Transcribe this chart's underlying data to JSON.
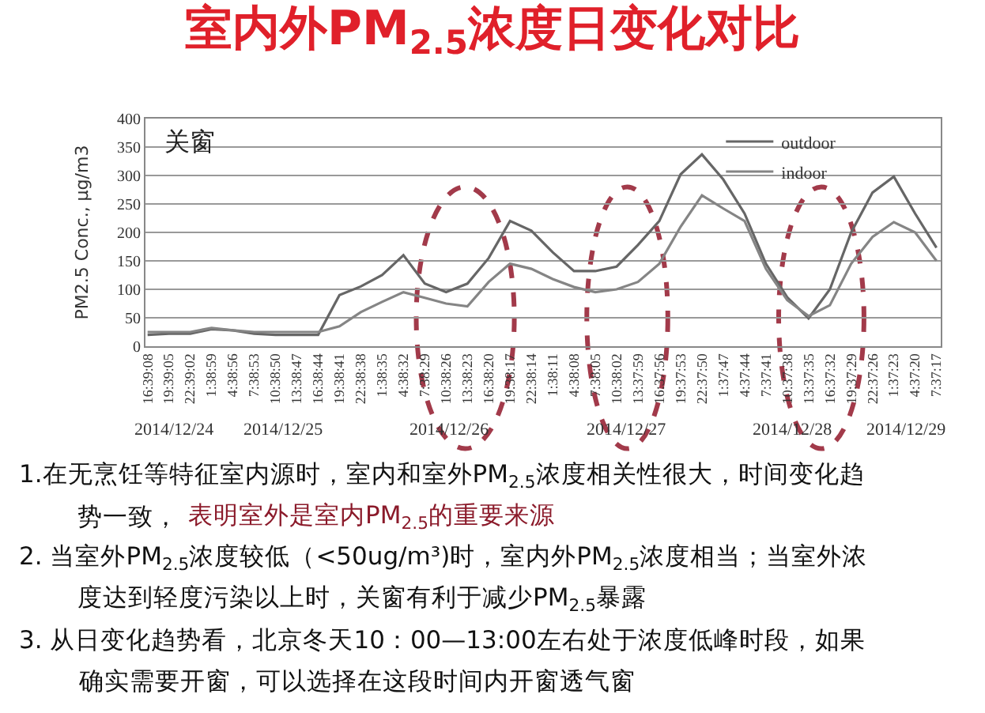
{
  "chart_data": {
    "type": "line",
    "title": "室内外PM$_{2.5}$浓度日变化对比",
    "ylabel": "PM2.5 Conc., μg/m3",
    "categories": [
      "16:39:08",
      "19:39:05",
      "22:39:02",
      "1:38:59",
      "4:38:56",
      "7:38:53",
      "10:38:50",
      "13:38:47",
      "16:38:44",
      "19:38:41",
      "22:38:38",
      "1:38:35",
      "4:38:32",
      "7:38:29",
      "10:38:26",
      "13:38:23",
      "16:38:20",
      "19:38:17",
      "22:38:14",
      "1:38:11",
      "4:38:08",
      "7:38:05",
      "10:38:02",
      "13:37:59",
      "16:37:56",
      "19:37:53",
      "22:37:50",
      "1:37:47",
      "4:37:44",
      "7:37:41",
      "10:37:38",
      "13:37:35",
      "16:37:32",
      "19:37:29",
      "22:37:26",
      "1:37:23",
      "4:37:20",
      "7:37:17"
    ],
    "series": [
      {
        "name": "outdoor",
        "color": "#666666",
        "values": [
          20,
          22,
          22,
          30,
          28,
          22,
          20,
          20,
          20,
          90,
          105,
          125,
          160,
          110,
          95,
          110,
          155,
          220,
          203,
          165,
          132,
          132,
          140,
          178,
          220,
          302,
          337,
          293,
          233,
          145,
          86,
          49,
          100,
          200,
          270,
          298,
          233,
          173
        ]
      },
      {
        "name": "indoor",
        "color": "#858585",
        "values": [
          25,
          25,
          25,
          32,
          28,
          25,
          25,
          25,
          25,
          35,
          60,
          78,
          95,
          85,
          75,
          70,
          113,
          145,
          136,
          118,
          104,
          95,
          100,
          113,
          145,
          210,
          265,
          242,
          220,
          136,
          81,
          53,
          72,
          145,
          192,
          218,
          200,
          150
        ]
      }
    ],
    "ylim": [
      0,
      400
    ],
    "yticks": [
      0,
      50,
      100,
      150,
      200,
      250,
      300,
      350,
      400
    ],
    "grid": "y",
    "legend": "top right",
    "marker": "none",
    "line_style": "solid",
    "annotations": [
      "关窗",
      "2014/12/24",
      "2014/12/25",
      "2014/12/26",
      "2014/12/27",
      "2014/12/28",
      "2014/12/29",
      "1.在无烹饪等特征室内源时，室内和室外PM$_{2.5}$浓度相关性很大，时间变化趋",
      "势一致，",
      "表明室外是室内PM$_{2.5}$的重要来源",
      "2. 当室外PM$_{2.5}$浓度较低（<50ug/m³)时，室内外PM$_{2.5}$浓度相当；当室外浓",
      "度达到轻度污染以上时，关窗有利于减少PM$_{2.5}$暴露",
      "3. 从日变化趋势看，北京冬天10：00—13:00左右处于浓度低峰时段，如果",
      "确实需要开窗，可以选择在这段时间内开窗透气窗"
    ]
  }
}
